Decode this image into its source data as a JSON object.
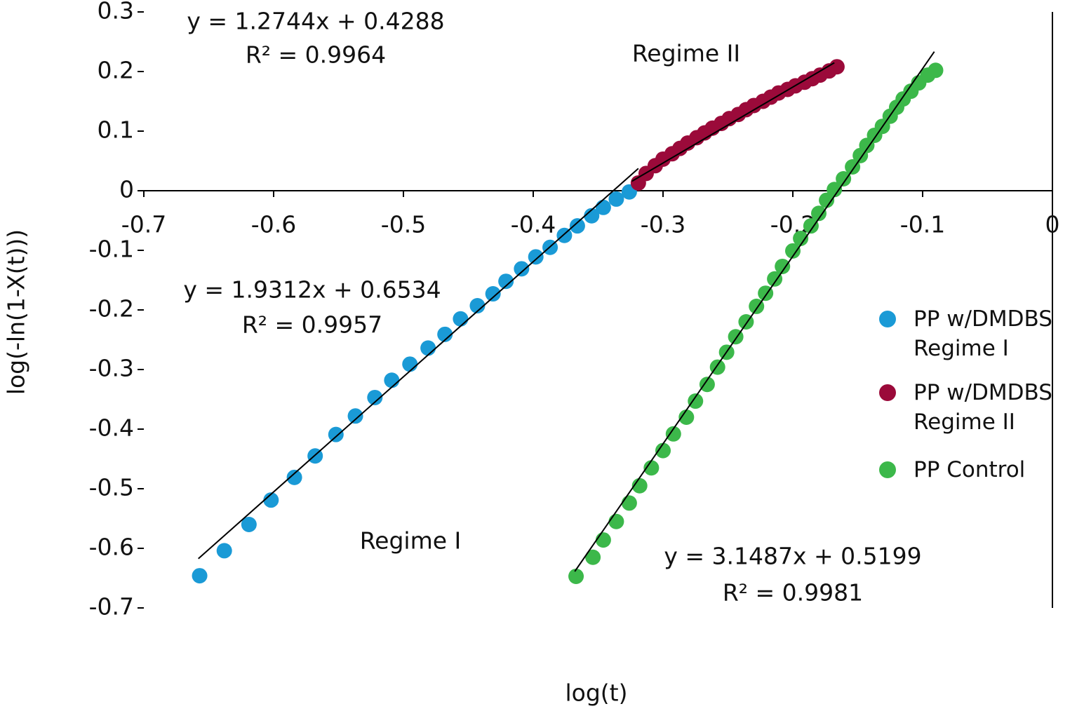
{
  "chart_data": {
    "type": "scatter",
    "x_label": "log(t)",
    "y_label": "log(-ln(1-X(t)))",
    "xlim": [
      -0.7,
      0
    ],
    "xticks": [
      -0.7,
      -0.6,
      -0.5,
      -0.4,
      -0.3,
      -0.2,
      -0.1,
      0
    ],
    "ylim": [
      -0.7,
      0.3
    ],
    "yticks": [
      -0.7,
      -0.6,
      -0.5,
      -0.4,
      -0.3,
      -0.2,
      -0.1,
      0,
      0.1,
      0.2,
      0.3
    ],
    "legend": "right",
    "series": [
      {
        "name": "PP w/DMDBS Regime I",
        "color": "#1a9ad6",
        "x": [
          -0.657,
          -0.638,
          -0.619,
          -0.602,
          -0.584,
          -0.568,
          -0.552,
          -0.537,
          -0.522,
          -0.509,
          -0.495,
          -0.481,
          -0.468,
          -0.456,
          -0.443,
          -0.431,
          -0.421,
          -0.409,
          -0.398,
          -0.387,
          -0.376,
          -0.366,
          -0.355,
          -0.346,
          -0.336,
          -0.326
        ],
        "values": [
          -0.646,
          -0.604,
          -0.56,
          -0.519,
          -0.481,
          -0.445,
          -0.409,
          -0.378,
          -0.347,
          -0.318,
          -0.291,
          -0.264,
          -0.241,
          -0.215,
          -0.193,
          -0.173,
          -0.152,
          -0.131,
          -0.111,
          -0.095,
          -0.075,
          -0.059,
          -0.042,
          -0.028,
          -0.014,
          -0.002
        ],
        "trendline": {
          "slope": 1.9312,
          "intercept": 0.6534,
          "x": [
            -0.658,
            -0.319
          ]
        }
      },
      {
        "name": "PP w/DMDBS Regime II",
        "color": "#9b0a3a",
        "x": [
          -0.319,
          -0.313,
          -0.306,
          -0.3,
          -0.293,
          -0.287,
          -0.281,
          -0.274,
          -0.268,
          -0.262,
          -0.255,
          -0.249,
          -0.242,
          -0.236,
          -0.23,
          -0.223,
          -0.217,
          -0.211,
          -0.204,
          -0.198,
          -0.191,
          -0.185,
          -0.179,
          -0.172,
          -0.166
        ],
        "values": [
          0.013,
          0.029,
          0.042,
          0.053,
          0.062,
          0.071,
          0.08,
          0.089,
          0.097,
          0.105,
          0.113,
          0.121,
          0.128,
          0.136,
          0.143,
          0.15,
          0.157,
          0.164,
          0.17,
          0.176,
          0.182,
          0.188,
          0.194,
          0.201,
          0.208
        ],
        "trendline": {
          "slope": 1.2744,
          "intercept": 0.4288,
          "x": [
            -0.324,
            -0.168
          ]
        }
      },
      {
        "name": "PP Control",
        "color": "#3cb84a",
        "x": [
          -0.367,
          -0.354,
          -0.346,
          -0.336,
          -0.326,
          -0.318,
          -0.309,
          -0.3,
          -0.292,
          -0.282,
          -0.275,
          -0.266,
          -0.258,
          -0.251,
          -0.244,
          -0.236,
          -0.228,
          -0.221,
          -0.214,
          -0.208,
          -0.2,
          -0.194,
          -0.186,
          -0.18,
          -0.174,
          -0.168,
          -0.161,
          -0.154,
          -0.148,
          -0.143,
          -0.137,
          -0.131,
          -0.125,
          -0.12,
          -0.115,
          -0.109,
          -0.103,
          -0.096,
          -0.09
        ],
        "values": [
          -0.647,
          -0.615,
          -0.586,
          -0.555,
          -0.524,
          -0.495,
          -0.465,
          -0.436,
          -0.408,
          -0.38,
          -0.353,
          -0.325,
          -0.296,
          -0.271,
          -0.245,
          -0.22,
          -0.194,
          -0.172,
          -0.148,
          -0.127,
          -0.101,
          -0.08,
          -0.059,
          -0.038,
          -0.016,
          0.002,
          0.02,
          0.04,
          0.059,
          0.076,
          0.093,
          0.108,
          0.125,
          0.14,
          0.154,
          0.167,
          0.181,
          0.194,
          0.202
        ],
        "trendline": {
          "slope": 3.1487,
          "intercept": 0.5199,
          "x": [
            -0.368,
            -0.091
          ]
        }
      }
    ],
    "annotations": [
      {
        "text": "y = 1.2744x + 0.4288",
        "color": "#9b1b4a"
      },
      {
        "text": "R² = 0.9964",
        "color": "#9b1b4a"
      },
      {
        "text": "Regime II",
        "color": "#9b1b4a"
      },
      {
        "text": "y = 1.9312x + 0.6534",
        "color": "#111111"
      },
      {
        "text": "R² = 0.9957",
        "color": "#111111"
      },
      {
        "text": "Regime I",
        "color": "#111111"
      },
      {
        "text": "y = 3.1487x + 0.5199",
        "color": "#4cbb4c"
      },
      {
        "text": "R² = 0.9981",
        "color": "#4cbb4c"
      }
    ]
  }
}
